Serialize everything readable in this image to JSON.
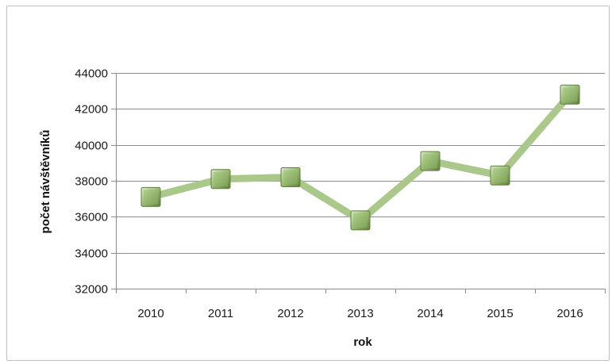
{
  "chart_data": {
    "type": "line",
    "title": "",
    "xlabel": "rok",
    "ylabel": "počet návštěvníků",
    "categories": [
      "2010",
      "2011",
      "2012",
      "2013",
      "2014",
      "2015",
      "2016"
    ],
    "series": [
      {
        "values": [
          37100,
          38100,
          38200,
          35800,
          39100,
          38300,
          42800
        ]
      }
    ],
    "ylim": [
      32000,
      44000
    ],
    "yticks": [
      32000,
      34000,
      36000,
      38000,
      40000,
      42000,
      44000
    ],
    "grid": true,
    "legend": "none",
    "colors": {
      "line": "#a9c88a",
      "marker": "#95b86f",
      "marker_dark": "#5f7f3c",
      "grid": "#8c8c8c"
    }
  }
}
